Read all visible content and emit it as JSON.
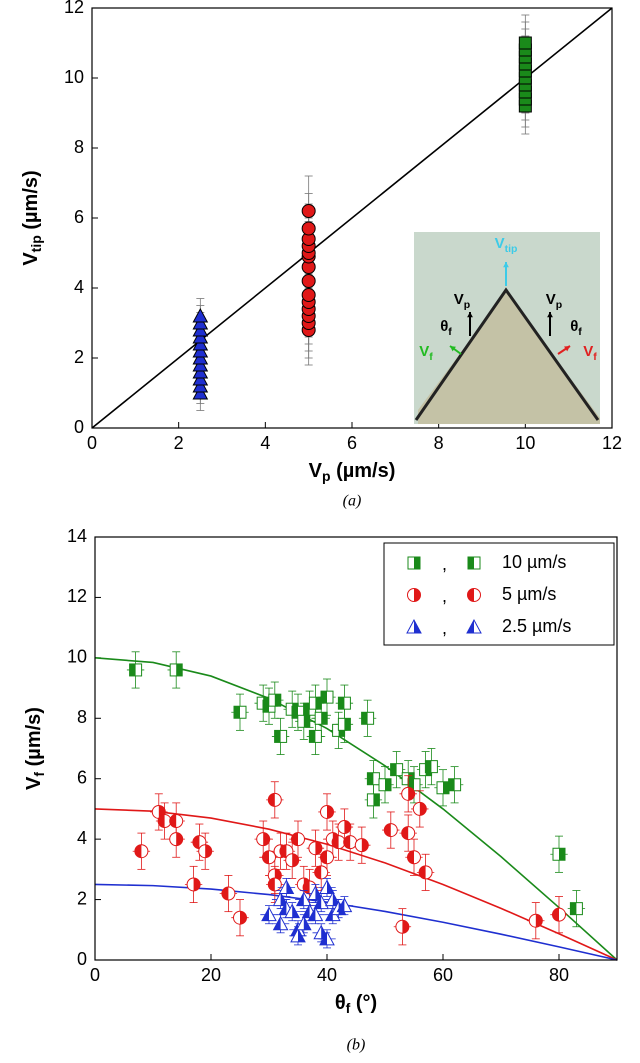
{
  "chart_data": [
    {
      "type": "scatter",
      "caption": "(a)",
      "xlabel": {
        "base": "V",
        "sub": "p",
        "unit": " (µm/s)"
      },
      "ylabel": {
        "base": "V",
        "sub": "tip",
        "unit": " (µm/s)"
      },
      "xlim": [
        0,
        12
      ],
      "ylim": [
        0,
        12
      ],
      "xticks": [
        0,
        2,
        4,
        6,
        8,
        10,
        12
      ],
      "yticks": [
        0,
        2,
        4,
        6,
        8,
        10,
        12
      ],
      "series": [
        {
          "marker": "triangle",
          "color": "#1f2fd0",
          "x": 2.5,
          "yerr": 0.5,
          "values": [
            1.0,
            1.2,
            1.4,
            1.6,
            1.8,
            2.0,
            2.2,
            2.4,
            2.6,
            2.8,
            3.0,
            3.2
          ]
        },
        {
          "marker": "circle",
          "color": "#e01818",
          "x": 5,
          "yerr": 1.0,
          "values": [
            2.8,
            3.0,
            3.2,
            3.4,
            3.6,
            3.8,
            4.2,
            4.6,
            4.9,
            5.0,
            5.2,
            5.4,
            5.7,
            6.2
          ]
        },
        {
          "marker": "square",
          "color": "#1a8a1a",
          "x": 10,
          "yerr": 0.8,
          "values": [
            9.2,
            9.4,
            9.6,
            9.8,
            10.0,
            10.2,
            10.4,
            10.6,
            10.8,
            11.0
          ]
        }
      ],
      "fits": [
        {
          "color": "#000000",
          "x": [
            0,
            12
          ],
          "values": [
            0,
            12
          ]
        }
      ],
      "inset": [
        {
          "base": "V",
          "sub": "tip",
          "color": "#3ccbe8"
        },
        {
          "base": "V",
          "sub": "p",
          "color": "#000000"
        },
        {
          "base": "θ",
          "sub": "f",
          "color": "#000000"
        },
        {
          "base": "V",
          "sub": "f",
          "color": "#22bb22"
        },
        {
          "base": "V",
          "sub": "p",
          "color": "#000000"
        },
        {
          "base": "θ",
          "sub": "f",
          "color": "#000000"
        },
        {
          "base": "V",
          "sub": "f",
          "color": "#e02020"
        }
      ]
    },
    {
      "type": "scatter",
      "caption": "(b)",
      "xlabel": {
        "base": "θ",
        "sub": "f",
        "unit": " (°)"
      },
      "ylabel": {
        "base": "V",
        "sub": "f",
        "unit": " (µm/s)"
      },
      "xlim": [
        0,
        90
      ],
      "ylim": [
        0,
        14
      ],
      "xticks": [
        0,
        20,
        40,
        60,
        80
      ],
      "yticks": [
        0,
        2,
        4,
        6,
        8,
        10,
        12,
        14
      ],
      "legend": "upper right",
      "legend_separator": ",",
      "series": [
        {
          "name": "10 µm/s",
          "marker": "square",
          "color": "#1a8a1a",
          "xerr": 1.5,
          "yerr": 0.6,
          "x": [
            7,
            14,
            25,
            29,
            30,
            31,
            32,
            34,
            35,
            36,
            37,
            38,
            38,
            39,
            40,
            42,
            43,
            43,
            47,
            48,
            48,
            50,
            52,
            54,
            55,
            57,
            58,
            60,
            62,
            80,
            83
          ],
          "values": [
            9.6,
            9.6,
            8.2,
            8.5,
            8.4,
            8.6,
            7.4,
            8.3,
            8.2,
            7.9,
            8.3,
            8.5,
            7.4,
            8.0,
            8.7,
            7.6,
            8.5,
            7.8,
            8.0,
            5.3,
            6.0,
            5.8,
            6.3,
            6.0,
            5.8,
            6.3,
            6.4,
            5.7,
            5.8,
            3.5,
            1.7
          ]
        },
        {
          "name": "5 µm/s",
          "marker": "circle",
          "color": "#e01818",
          "xerr": 1.5,
          "yerr": 0.6,
          "x": [
            8,
            11,
            12,
            14,
            14,
            17,
            18,
            19,
            23,
            25,
            31,
            29,
            30,
            31,
            31,
            32,
            33,
            34,
            35,
            36,
            37,
            38,
            39,
            40,
            40,
            41,
            42,
            43,
            44,
            46,
            51,
            53,
            54,
            54,
            55,
            56,
            57,
            76,
            80
          ],
          "values": [
            3.6,
            4.9,
            4.6,
            4.0,
            4.6,
            2.5,
            3.9,
            3.6,
            2.2,
            1.4,
            5.3,
            4.0,
            3.4,
            2.8,
            2.5,
            3.6,
            3.6,
            3.3,
            4.0,
            2.5,
            2.4,
            3.7,
            2.9,
            4.9,
            3.4,
            4.0,
            3.9,
            4.4,
            3.9,
            3.8,
            4.3,
            1.1,
            4.2,
            5.5,
            3.4,
            5.0,
            2.9,
            1.3,
            1.5
          ]
        },
        {
          "name": "2.5 µm/s",
          "marker": "triangle",
          "color": "#1f2fd0",
          "xerr": 1.5,
          "yerr": 0.3,
          "x": [
            30,
            32,
            32,
            33,
            33,
            34,
            35,
            35,
            36,
            36,
            37,
            38,
            38,
            39,
            39,
            40,
            40,
            41,
            41,
            42,
            43
          ],
          "values": [
            1.5,
            2.0,
            1.2,
            2.4,
            1.7,
            1.6,
            1.0,
            0.8,
            2.0,
            1.2,
            1.6,
            2.2,
            1.5,
            0.9,
            1.9,
            2.4,
            0.7,
            2.0,
            1.5,
            1.7,
            1.8
          ]
        }
      ],
      "fits": [
        {
          "color": "#1a8a1a",
          "x": [
            0,
            10,
            20,
            30,
            40,
            50,
            60,
            70,
            80,
            90
          ],
          "values": [
            10,
            9.848,
            9.397,
            8.66,
            7.66,
            6.428,
            5,
            3.42,
            1.736,
            0
          ]
        },
        {
          "color": "#e01818",
          "x": [
            0,
            10,
            20,
            30,
            40,
            50,
            60,
            70,
            80,
            90
          ],
          "values": [
            5,
            4.924,
            4.698,
            4.33,
            3.83,
            3.214,
            2.5,
            1.71,
            0.868,
            0
          ]
        },
        {
          "color": "#1f2fd0",
          "x": [
            0,
            10,
            20,
            30,
            40,
            50,
            60,
            70,
            80,
            90
          ],
          "values": [
            2.5,
            2.462,
            2.349,
            2.165,
            1.915,
            1.607,
            1.25,
            0.855,
            0.434,
            0
          ]
        }
      ]
    }
  ]
}
